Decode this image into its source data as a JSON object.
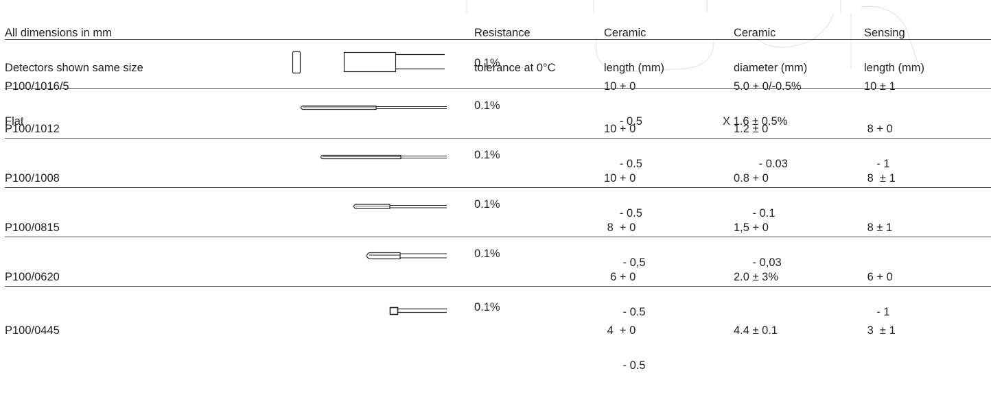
{
  "header": {
    "note_line1": "All dimensions in mm",
    "note_line2": "Detectors shown same size",
    "col_tolerance": [
      "Resistance",
      "tolerance at 0°C"
    ],
    "col_length": [
      "Ceramic",
      "length (mm)"
    ],
    "col_diameter": [
      "Ceramic",
      "diameter (mm)"
    ],
    "col_sensing": [
      "Sensing",
      "length (mm)"
    ]
  },
  "rows": [
    {
      "model": "P100/1016/5",
      "model_sub": "Flat",
      "detector_icon": "flat-detector-icon",
      "tolerance": "0.1%",
      "length": [
        "10 + 0",
        "     - 0.5"
      ],
      "diameter": [
        "5.0 + 0/-0.5%",
        "X 1.6 ± 0.5%"
      ],
      "sensing": [
        "10 ± 1",
        ""
      ]
    },
    {
      "model": "P100/1012",
      "model_sub": "",
      "detector_icon": "long-probe-icon",
      "tolerance": "0.1%",
      "length": [
        "10 + 0",
        "     - 0.5"
      ],
      "diameter": [
        "1.2 ± 0",
        "        - 0.03"
      ],
      "sensing": [
        " 8 + 0",
        "    - 1"
      ]
    },
    {
      "model": "P100/1008",
      "model_sub": "",
      "detector_icon": "thin-probe-icon",
      "tolerance": "0.1%",
      "length": [
        "10 + 0",
        "     - 0.5"
      ],
      "diameter": [
        "0.8 + 0",
        "      - 0.1"
      ],
      "sensing": [
        " 8  ± 1",
        ""
      ]
    },
    {
      "model": "P100/0815",
      "model_sub": "",
      "detector_icon": "short-probe-icon",
      "tolerance": "0.1%",
      "length": [
        " 8  + 0",
        "      - 0,5"
      ],
      "diameter": [
        "1,5 + 0",
        "      - 0,03"
      ],
      "sensing": [
        " 8 ± 1",
        ""
      ]
    },
    {
      "model": "P100/0620",
      "model_sub": "",
      "detector_icon": "wide-probe-icon",
      "tolerance": "0.1%",
      "length": [
        "  6 + 0",
        "      - 0.5"
      ],
      "diameter": [
        "2.0 ± 3%",
        ""
      ],
      "sensing": [
        " 6 + 0",
        "    - 1"
      ]
    },
    {
      "model": "P100/0445",
      "model_sub": "",
      "detector_icon": "chip-detector-icon",
      "tolerance": "0.1%",
      "length": [
        " 4  + 0",
        "      - 0.5"
      ],
      "diameter": [
        "4.4 ± 0.1",
        ""
      ],
      "sensing": [
        " 3  ± 1",
        ""
      ]
    }
  ]
}
